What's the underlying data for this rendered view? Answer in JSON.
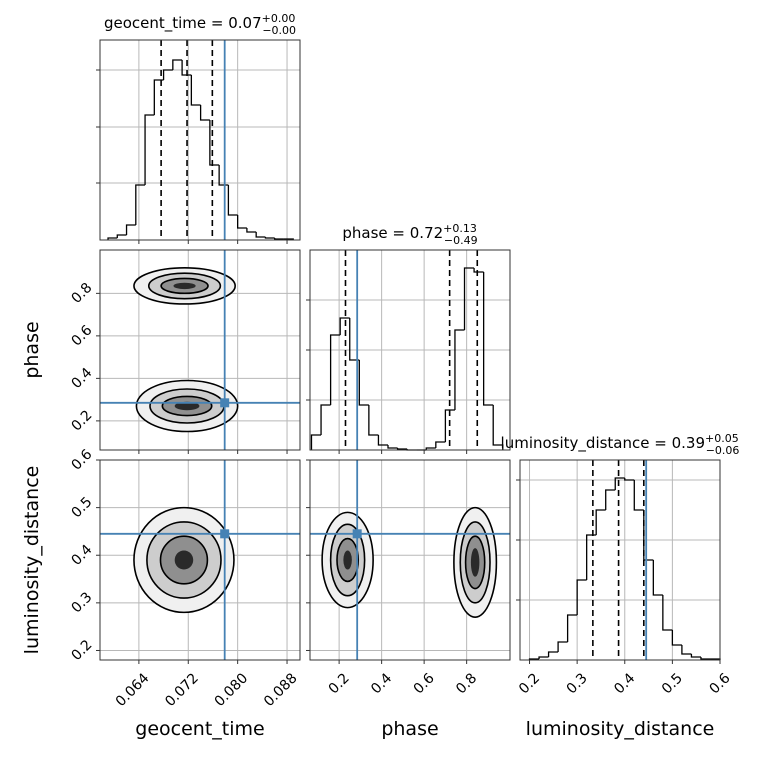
{
  "chart_data": [
    {
      "type": "histogram",
      "title": "geocent_time = 0.07",
      "title_upper": "+0.00",
      "title_lower": "−0.00",
      "bins": [
        0.059,
        0.0605,
        0.062,
        0.0635,
        0.065,
        0.0665,
        0.068,
        0.0695,
        0.071,
        0.0725,
        0.074,
        0.0755,
        0.077,
        0.0785,
        0.08,
        0.0815,
        0.083,
        0.0845,
        0.086,
        0.0875,
        0.089
      ],
      "counts": [
        2,
        5,
        15,
        55,
        125,
        160,
        170,
        180,
        165,
        135,
        120,
        75,
        55,
        25,
        12,
        8,
        3,
        2,
        1,
        1
      ],
      "xlim": [
        0.0577,
        0.0901
      ],
      "ylim": [
        0,
        200
      ],
      "xticks": [
        0.064,
        0.072,
        {
          "value": 0.08,
          "label": "0.080"
        },
        0.088
      ],
      "yticks": [
        57,
        113,
        170
      ],
      "quantiles": [
        0.0676,
        0.0718,
        0.0759
      ],
      "truth": 0.0779,
      "truth_color": "#4682b4",
      "grid": true,
      "show_x_tick_labels": false,
      "show_y_tick_labels": false
    },
    {
      "type": "contour",
      "xlim": [
        0.0577,
        0.0901
      ],
      "ylim": [
        0.063,
        1.004
      ],
      "xticks": [
        0.064,
        0.072,
        {
          "value": 0.08,
          "label": "0.080"
        },
        0.088
      ],
      "yticks": [
        0.2,
        0.4,
        0.6,
        0.8
      ],
      "ylabel": "phase",
      "truths": [
        0.0779,
        0.285
      ],
      "truth_color": "#4682b4",
      "grid": true,
      "show_x_tick_labels": false,
      "show_y_tick_labels": true,
      "modes": [
        {
          "cx": 0.0714,
          "cy": 0.835,
          "rx": [
            0.0082,
            0.0058,
            0.0038,
            0.0018
          ],
          "ry": [
            0.085,
            0.06,
            0.035,
            0.015
          ]
        },
        {
          "cx": 0.0718,
          "cy": 0.27,
          "rx": [
            0.0082,
            0.006,
            0.004,
            0.002
          ],
          "ry": [
            0.12,
            0.08,
            0.045,
            0.02
          ]
        }
      ]
    },
    {
      "type": "histogram",
      "title": "phase = 0.72",
      "title_upper": "+0.13",
      "title_lower": "−0.49",
      "bins": [
        0.07,
        0.115,
        0.16,
        0.205,
        0.25,
        0.295,
        0.34,
        0.385,
        0.43,
        0.475,
        0.52,
        0.565,
        0.61,
        0.655,
        0.7,
        0.745,
        0.79,
        0.835,
        0.88,
        0.925,
        0.97
      ],
      "counts": [
        15,
        45,
        115,
        132,
        90,
        45,
        15,
        5,
        2,
        1,
        0,
        0,
        2,
        8,
        40,
        120,
        182,
        178,
        45,
        5
      ],
      "xlim": [
        0.063,
        1.004
      ],
      "ylim": [
        0,
        200
      ],
      "xticks": [
        0.2,
        0.4,
        0.6,
        0.8
      ],
      "yticks": [
        50,
        100,
        150
      ],
      "quantiles": [
        0.23,
        0.72,
        0.85
      ],
      "truth": 0.285,
      "truth_color": "#4682b4",
      "grid": true,
      "show_x_tick_labels": false,
      "show_y_tick_labels": false
    },
    {
      "type": "contour",
      "xlim": [
        0.0577,
        0.0901
      ],
      "ylim": [
        0.18,
        0.6
      ],
      "xticks": [
        0.064,
        0.072,
        {
          "value": 0.08,
          "label": "0.080"
        },
        0.088
      ],
      "yticks": [
        0.2,
        0.3,
        0.4,
        0.5,
        0.6
      ],
      "xlabel": "geocent_time",
      "ylabel": "luminosity_distance",
      "truths": [
        0.0779,
        0.445
      ],
      "truth_color": "#4682b4",
      "grid": true,
      "show_x_tick_labels": true,
      "show_y_tick_labels": true,
      "modes": [
        {
          "cx": 0.0713,
          "cy": 0.39,
          "rx": [
            0.0081,
            0.006,
            0.0038,
            0.0015
          ],
          "ry": [
            0.11,
            0.08,
            0.05,
            0.02
          ]
        }
      ]
    },
    {
      "type": "contour",
      "xlim": [
        0.063,
        1.004
      ],
      "ylim": [
        0.18,
        0.6
      ],
      "xticks": [
        0.2,
        0.4,
        0.6,
        0.8
      ],
      "yticks": [
        0.2,
        0.3,
        0.4,
        0.5,
        0.6
      ],
      "xlabel": "phase",
      "truths": [
        0.285,
        0.445
      ],
      "truth_color": "#4682b4",
      "grid": true,
      "show_x_tick_labels": true,
      "show_y_tick_labels": false,
      "modes": [
        {
          "cx": 0.24,
          "cy": 0.39,
          "rx": [
            0.12,
            0.08,
            0.05,
            0.02
          ],
          "ry": [
            0.1,
            0.075,
            0.045,
            0.02
          ]
        },
        {
          "cx": 0.84,
          "cy": 0.385,
          "rx": [
            0.1,
            0.07,
            0.045,
            0.02
          ],
          "ry": [
            0.115,
            0.085,
            0.055,
            0.03
          ]
        }
      ]
    },
    {
      "type": "histogram",
      "title": "luminosity_distance = 0.39",
      "title_upper": "+0.05",
      "title_lower": "−0.06",
      "bins": [
        0.2,
        0.22,
        0.24,
        0.26,
        0.28,
        0.3,
        0.32,
        0.34,
        0.36,
        0.38,
        0.4,
        0.42,
        0.44,
        0.46,
        0.48,
        0.5,
        0.52,
        0.54,
        0.56,
        0.58,
        0.6
      ],
      "counts": [
        1,
        3,
        8,
        18,
        45,
        80,
        125,
        150,
        170,
        182,
        180,
        150,
        100,
        65,
        30,
        15,
        6,
        3,
        1,
        1
      ],
      "xlim": [
        0.18,
        0.6
      ],
      "ylim": [
        0,
        200
      ],
      "xticks": [
        0.2,
        0.3,
        0.4,
        0.5,
        0.6
      ],
      "yticks": [
        60,
        120,
        180
      ],
      "xlabel": "luminosity_distance",
      "quantiles": [
        0.333,
        0.387,
        0.44
      ],
      "truth": 0.445,
      "truth_color": "#4682b4",
      "grid": true,
      "show_x_tick_labels": true,
      "show_y_tick_labels": false
    }
  ]
}
